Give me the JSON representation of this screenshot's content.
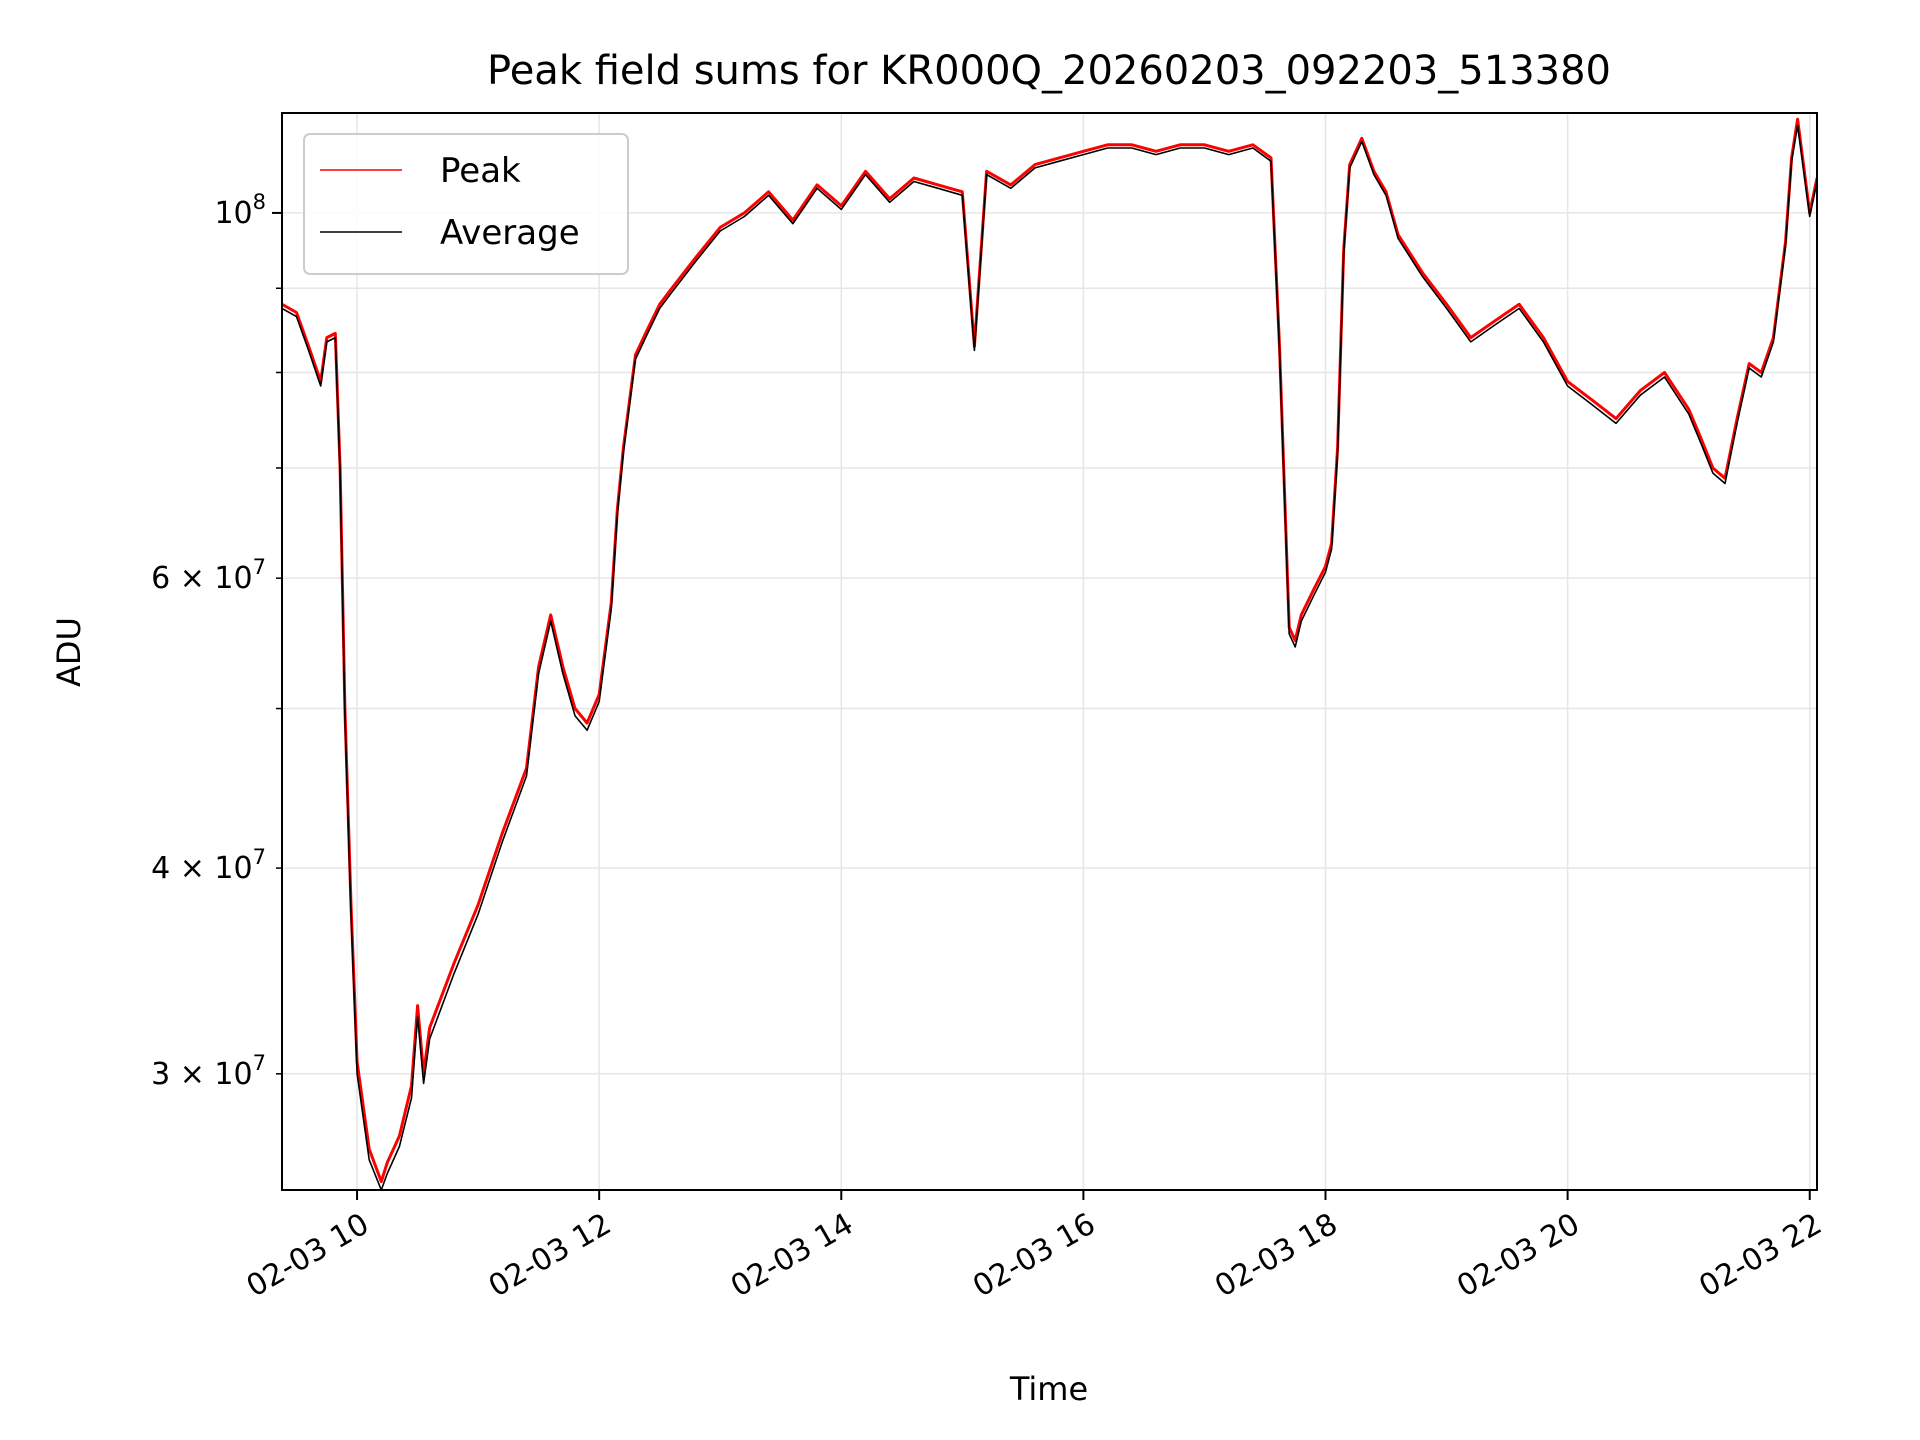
{
  "chart_data": {
    "type": "line",
    "title": "Peak field sums for KR000Q_20260203_092203_513380",
    "xlabel": "Time",
    "ylabel": "ADU",
    "yscale": "log",
    "grid": true,
    "legend_position": "top-left",
    "xlim_hours": [
      9.38,
      22.06
    ],
    "ylim": [
      25500000,
      115000000
    ],
    "x_ticks": [
      {
        "value": 10,
        "label": "02-03 10"
      },
      {
        "value": 12,
        "label": "02-03 12"
      },
      {
        "value": 14,
        "label": "02-03 14"
      },
      {
        "value": 16,
        "label": "02-03 16"
      },
      {
        "value": 18,
        "label": "02-03 18"
      },
      {
        "value": 20,
        "label": "02-03 20"
      },
      {
        "value": 22,
        "label": "02-03 22"
      }
    ],
    "y_ticks_major": [
      {
        "value": 100000000,
        "label": "10",
        "exp": "8"
      }
    ],
    "y_ticks_minor": [
      {
        "value": 30000000,
        "label": "3 × 10",
        "exp": "7"
      },
      {
        "value": 40000000,
        "label": "4 × 10",
        "exp": "7"
      },
      {
        "value": 50000000,
        "label": "",
        "exp": ""
      },
      {
        "value": 60000000,
        "label": "6 × 10",
        "exp": "7"
      },
      {
        "value": 70000000,
        "label": "",
        "exp": ""
      },
      {
        "value": 80000000,
        "label": "",
        "exp": ""
      },
      {
        "value": 90000000,
        "label": "",
        "exp": ""
      }
    ],
    "series": [
      {
        "name": "Peak",
        "color": "#ff0000",
        "x_hours": [
          9.38,
          9.5,
          9.6,
          9.7,
          9.75,
          9.82,
          9.86,
          9.9,
          9.95,
          10.0,
          10.1,
          10.2,
          10.25,
          10.35,
          10.45,
          10.5,
          10.55,
          10.6,
          10.8,
          11.0,
          11.2,
          11.4,
          11.5,
          11.6,
          11.7,
          11.8,
          11.9,
          12.0,
          12.1,
          12.15,
          12.2,
          12.3,
          12.4,
          12.5,
          12.6,
          12.8,
          13.0,
          13.2,
          13.4,
          13.6,
          13.8,
          14.0,
          14.2,
          14.4,
          14.6,
          14.8,
          15.0,
          15.1,
          15.2,
          15.4,
          15.6,
          15.8,
          16.0,
          16.2,
          16.4,
          16.6,
          16.8,
          17.0,
          17.2,
          17.4,
          17.55,
          17.62,
          17.7,
          17.75,
          17.8,
          17.9,
          18.0,
          18.05,
          18.1,
          18.15,
          18.2,
          18.3,
          18.4,
          18.5,
          18.6,
          18.8,
          19.0,
          19.2,
          19.4,
          19.6,
          19.8,
          20.0,
          20.2,
          20.4,
          20.6,
          20.8,
          21.0,
          21.1,
          21.2,
          21.3,
          21.4,
          21.5,
          21.6,
          21.7,
          21.8,
          21.85,
          21.9,
          22.0,
          22.06
        ],
        "values": [
          88000000,
          87000000,
          83000000,
          79000000,
          84000000,
          84500000,
          70000000,
          50000000,
          38000000,
          30500000,
          27000000,
          25800000,
          26500000,
          27500000,
          29500000,
          33000000,
          30000000,
          32000000,
          35000000,
          38000000,
          42000000,
          46000000,
          53000000,
          57000000,
          53000000,
          50000000,
          49000000,
          51000000,
          58000000,
          66000000,
          72000000,
          82000000,
          85000000,
          88000000,
          90000000,
          94000000,
          98000000,
          100000000,
          103000000,
          99000000,
          104000000,
          101000000,
          106000000,
          102000000,
          105000000,
          104000000,
          103000000,
          83000000,
          106000000,
          104000000,
          107000000,
          108000000,
          109000000,
          110000000,
          110000000,
          109000000,
          110000000,
          110000000,
          109000000,
          110000000,
          108000000,
          83000000,
          56000000,
          55000000,
          57000000,
          59000000,
          61000000,
          63000000,
          72000000,
          95000000,
          107000000,
          111000000,
          106000000,
          103000000,
          97000000,
          92000000,
          88000000,
          84000000,
          86000000,
          88000000,
          84000000,
          79000000,
          77000000,
          75000000,
          78000000,
          80000000,
          76000000,
          73000000,
          70000000,
          69000000,
          75000000,
          81000000,
          80000000,
          84000000,
          96000000,
          108000000,
          114000000,
          100000000,
          105000000
        ]
      },
      {
        "name": "Average",
        "color": "#000000",
        "x_hours": [
          9.38,
          9.5,
          9.6,
          9.7,
          9.75,
          9.82,
          9.86,
          9.9,
          9.95,
          10.0,
          10.1,
          10.2,
          10.25,
          10.35,
          10.45,
          10.5,
          10.55,
          10.6,
          10.8,
          11.0,
          11.2,
          11.4,
          11.5,
          11.6,
          11.7,
          11.8,
          11.9,
          12.0,
          12.1,
          12.15,
          12.2,
          12.3,
          12.4,
          12.5,
          12.6,
          12.8,
          13.0,
          13.2,
          13.4,
          13.6,
          13.8,
          14.0,
          14.2,
          14.4,
          14.6,
          14.8,
          15.0,
          15.1,
          15.2,
          15.4,
          15.6,
          15.8,
          16.0,
          16.2,
          16.4,
          16.6,
          16.8,
          17.0,
          17.2,
          17.4,
          17.55,
          17.62,
          17.7,
          17.75,
          17.8,
          17.9,
          18.0,
          18.05,
          18.1,
          18.15,
          18.2,
          18.3,
          18.4,
          18.5,
          18.6,
          18.8,
          19.0,
          19.2,
          19.4,
          19.6,
          19.8,
          20.0,
          20.2,
          20.4,
          20.6,
          20.8,
          21.0,
          21.1,
          21.2,
          21.3,
          21.4,
          21.5,
          21.6,
          21.7,
          21.8,
          21.85,
          21.9,
          22.0,
          22.06
        ],
        "values": [
          87500000,
          86500000,
          82500000,
          78500000,
          83500000,
          84000000,
          69500000,
          49500000,
          37500000,
          30000000,
          26600000,
          25500000,
          26100000,
          27100000,
          29000000,
          32500000,
          29600000,
          31500000,
          34500000,
          37500000,
          41500000,
          45500000,
          52500000,
          56500000,
          52500000,
          49500000,
          48500000,
          50500000,
          57500000,
          65500000,
          71500000,
          81500000,
          84500000,
          87500000,
          89500000,
          93500000,
          97500000,
          99500000,
          102500000,
          98500000,
          103500000,
          100500000,
          105500000,
          101500000,
          104500000,
          103500000,
          102500000,
          82500000,
          105500000,
          103500000,
          106500000,
          107500000,
          108500000,
          109500000,
          109500000,
          108500000,
          109500000,
          109500000,
          108500000,
          109500000,
          107500000,
          82500000,
          55500000,
          54500000,
          56500000,
          58500000,
          60500000,
          62500000,
          71500000,
          94500000,
          106500000,
          110500000,
          105500000,
          102500000,
          96500000,
          91500000,
          87500000,
          83500000,
          85500000,
          87500000,
          83500000,
          78500000,
          76500000,
          74500000,
          77500000,
          79500000,
          75500000,
          72500000,
          69500000,
          68500000,
          74500000,
          80500000,
          79500000,
          83500000,
          95500000,
          107500000,
          113000000,
          99500000,
          104500000
        ]
      }
    ]
  }
}
